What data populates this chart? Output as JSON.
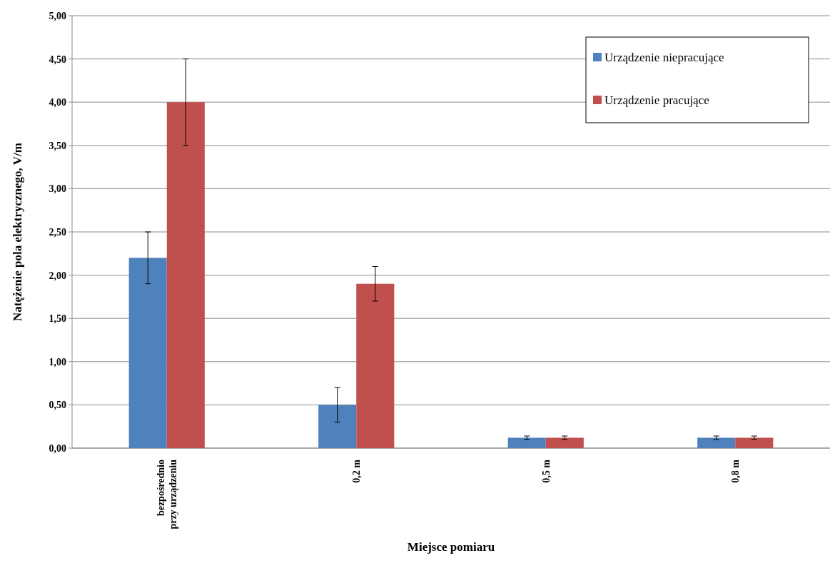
{
  "chart_data": {
    "type": "bar",
    "xlabel": "Miejsce pomiaru",
    "ylabel": "Natężenie pola elektrycznego, V/m",
    "categories": [
      "bezpośrednio przy urządzeniu",
      "0,2 m",
      "0,5 m",
      "0,8 m"
    ],
    "series": [
      {
        "name": "Urządzenie niepracujące",
        "color": "#4f81bd",
        "values": [
          2.2,
          0.5,
          0.12,
          0.12
        ],
        "errors": [
          0.3,
          0.2,
          0.02,
          0.02
        ]
      },
      {
        "name": "Urządzenie pracujące",
        "color": "#c0504d",
        "values": [
          4.0,
          1.9,
          0.12,
          0.12
        ],
        "errors": [
          0.5,
          0.2,
          0.02,
          0.02
        ]
      }
    ],
    "ylim": [
      0,
      5
    ],
    "yticks": [
      {
        "value": 0,
        "label": "0,00"
      },
      {
        "value": 0.5,
        "label": "0,50"
      },
      {
        "value": 1,
        "label": "1,00"
      },
      {
        "value": 1.5,
        "label": "1,50"
      },
      {
        "value": 2,
        "label": "2,00"
      },
      {
        "value": 2.5,
        "label": "2,50"
      },
      {
        "value": 3,
        "label": "3,00"
      },
      {
        "value": 3.5,
        "label": "3,50"
      },
      {
        "value": 4,
        "label": "4,00"
      },
      {
        "value": 4.5,
        "label": "4,50"
      },
      {
        "value": 5,
        "label": "5,00"
      }
    ],
    "grid": "y",
    "legend": "top right"
  }
}
